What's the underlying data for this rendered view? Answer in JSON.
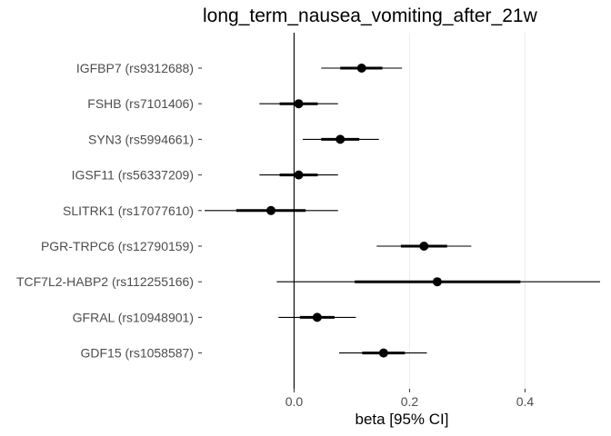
{
  "chart_data": {
    "type": "forest",
    "title": "long_term_nausea_vomiting_after_21w",
    "xlabel": "beta [95% CI]",
    "ylabel": "",
    "xlim": [
      -0.155,
      0.53
    ],
    "xticks": [
      0.0,
      0.2,
      0.4
    ],
    "xtick_labels": [
      "0.0",
      "0.2",
      "0.4"
    ],
    "grid": true,
    "reference_line": 0,
    "rows": [
      {
        "label": "IGFBP7 (rs9312688)",
        "beta": 0.117,
        "ci_inner": [
          0.08,
          0.153
        ],
        "ci": [
          0.047,
          0.187
        ]
      },
      {
        "label": "FSHB (rs7101406)",
        "beta": 0.008,
        "ci_inner": [
          -0.025,
          0.041
        ],
        "ci": [
          -0.06,
          0.076
        ]
      },
      {
        "label": "SYN3 (rs5994661)",
        "beta": 0.08,
        "ci_inner": [
          0.047,
          0.113
        ],
        "ci": [
          0.015,
          0.147
        ]
      },
      {
        "label": "IGSF11 (rs56337209)",
        "beta": 0.008,
        "ci_inner": [
          -0.025,
          0.041
        ],
        "ci": [
          -0.06,
          0.076
        ]
      },
      {
        "label": "SLITRK1 (rs17077610)",
        "beta": -0.04,
        "ci_inner": [
          -0.1,
          0.02
        ],
        "ci": [
          -0.155,
          0.076
        ]
      },
      {
        "label": "PGR-TRPC6 (rs12790159)",
        "beta": 0.225,
        "ci_inner": [
          0.185,
          0.265
        ],
        "ci": [
          0.143,
          0.307
        ]
      },
      {
        "label": "TCF7L2-HABP2 (rs112255166)",
        "beta": 0.248,
        "ci_inner": [
          0.105,
          0.392
        ],
        "ci": [
          -0.03,
          0.53
        ]
      },
      {
        "label": "GFRAL (rs10948901)",
        "beta": 0.04,
        "ci_inner": [
          0.01,
          0.07
        ],
        "ci": [
          -0.027,
          0.107
        ]
      },
      {
        "label": "GDF15 (rs1058587)",
        "beta": 0.155,
        "ci_inner": [
          0.118,
          0.192
        ],
        "ci": [
          0.078,
          0.23
        ]
      }
    ]
  }
}
